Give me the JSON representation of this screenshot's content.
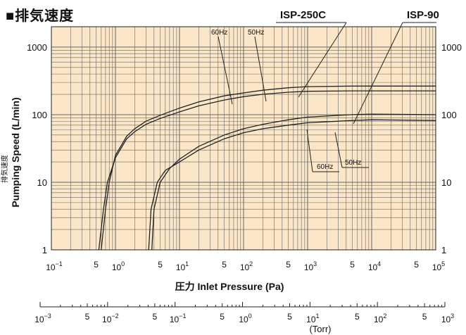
{
  "title": "■排気速度",
  "chart_data": {
    "type": "line",
    "xlabel": "圧力 Inlet Pressure (Pa)",
    "ylabel": "Pumping Speed (L/min)",
    "ylabel_jp": "排気速度",
    "xscale": "log",
    "yscale": "log",
    "xlim": [
      0.1,
      100000
    ],
    "ylim": [
      1,
      2000
    ],
    "grid": true,
    "background": "#fbe6c8",
    "line_color": "#222222",
    "y_ticks": [
      "1",
      "10",
      "100",
      "1000"
    ],
    "x_ticks_pa": [
      {
        "base": "10",
        "exp": "−1",
        "v": 0.1
      },
      {
        "base": "5",
        "exp": "",
        "v": 0.5
      },
      {
        "base": "10",
        "exp": "0",
        "v": 1
      },
      {
        "base": "5",
        "exp": "",
        "v": 5
      },
      {
        "base": "10",
        "exp": "1",
        "v": 10
      },
      {
        "base": "5",
        "exp": "",
        "v": 50
      },
      {
        "base": "10",
        "exp": "2",
        "v": 100
      },
      {
        "base": "5",
        "exp": "",
        "v": 500
      },
      {
        "base": "10",
        "exp": "3",
        "v": 1000
      },
      {
        "base": "5",
        "exp": "",
        "v": 5000
      },
      {
        "base": "10",
        "exp": "4",
        "v": 10000
      },
      {
        "base": "5",
        "exp": "",
        "v": 50000
      },
      {
        "base": "10",
        "exp": "5",
        "v": 100000
      }
    ],
    "torr_axis": {
      "label": "(Torr)",
      "ticks": [
        {
          "base": "10",
          "exp": "−3",
          "v": 0.001
        },
        {
          "base": "5",
          "exp": "",
          "v": 0.005
        },
        {
          "base": "10",
          "exp": "−2",
          "v": 0.01
        },
        {
          "base": "5",
          "exp": "",
          "v": 0.05
        },
        {
          "base": "10",
          "exp": "−1",
          "v": 0.1
        },
        {
          "base": "5",
          "exp": "",
          "v": 0.5
        },
        {
          "base": "10",
          "exp": "0",
          "v": 1
        },
        {
          "base": "5",
          "exp": "",
          "v": 5
        },
        {
          "base": "10",
          "exp": "1",
          "v": 10
        },
        {
          "base": "5",
          "exp": "",
          "v": 50
        },
        {
          "base": "10",
          "exp": "2",
          "v": 100
        },
        {
          "base": "5",
          "exp": "",
          "v": 500
        },
        {
          "base": "10",
          "exp": "3",
          "v": 1000
        }
      ]
    },
    "series": [
      {
        "name": "ISP-250C 60Hz",
        "x": [
          0.6,
          0.7,
          0.8,
          1,
          1.5,
          2,
          3,
          5,
          10,
          20,
          50,
          100,
          200,
          500,
          1000,
          5000,
          100000
        ],
        "y": [
          1,
          4,
          10,
          25,
          48,
          62,
          80,
          98,
          125,
          155,
          190,
          210,
          230,
          250,
          260,
          265,
          265
        ]
      },
      {
        "name": "ISP-250C 50Hz",
        "x": [
          0.55,
          0.65,
          0.75,
          1,
          1.5,
          2,
          3,
          5,
          10,
          20,
          50,
          100,
          200,
          500,
          1000,
          5000,
          100000
        ],
        "y": [
          1,
          4,
          10,
          23,
          44,
          56,
          72,
          88,
          110,
          135,
          165,
          185,
          200,
          215,
          222,
          225,
          225
        ]
      },
      {
        "name": "ISP-90 60Hz",
        "x": [
          3.7,
          4,
          5,
          7,
          10,
          20,
          50,
          100,
          200,
          500,
          1000,
          5000,
          10000,
          100000
        ],
        "y": [
          1,
          4,
          10,
          16,
          22,
          34,
          50,
          62,
          72,
          84,
          92,
          100,
          102,
          100
        ]
      },
      {
        "name": "ISP-90 50Hz",
        "x": [
          3.3,
          3.6,
          4.5,
          6,
          10,
          20,
          50,
          100,
          200,
          500,
          1000,
          5000,
          10000,
          100000
        ],
        "y": [
          1,
          4,
          10,
          15,
          20,
          30,
          44,
          54,
          62,
          70,
          76,
          82,
          84,
          82
        ]
      }
    ],
    "annotations": [
      {
        "id": "isp250c",
        "text": "ISP-250C"
      },
      {
        "id": "isp90",
        "text": "ISP-90"
      },
      {
        "id": "a60hz",
        "text": "60Hz"
      },
      {
        "id": "a50hz",
        "text": "50Hz"
      },
      {
        "id": "b60hz",
        "text": "60Hz"
      },
      {
        "id": "b50hz",
        "text": "50Hz"
      }
    ]
  }
}
